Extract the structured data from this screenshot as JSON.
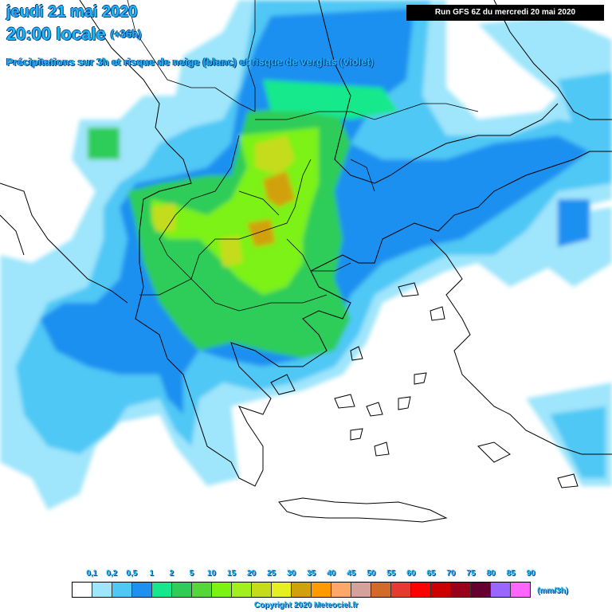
{
  "header": {
    "date_line": "jeudi 21 mai 2020",
    "time_line": "20:00 locale",
    "lead_time": "(+36h)",
    "subtitle": "Précipitations sur 3h et risque de neige (blanc) et risque de verglas (violet)",
    "run_info": "Run GFS 6Z du mercredi 20 mai 2020"
  },
  "legend": {
    "unit": "(mm/3h)",
    "values": [
      "0,1",
      "0,2",
      "0,5",
      "1",
      "2",
      "5",
      "10",
      "15",
      "20",
      "25",
      "30",
      "35",
      "40",
      "45",
      "50",
      "55",
      "60",
      "65",
      "70",
      "75",
      "80",
      "85",
      "90"
    ],
    "colors": [
      "#ffffff",
      "#9fe5fb",
      "#4fc8f5",
      "#1e90f0",
      "#15e88c",
      "#2fcc58",
      "#55d63a",
      "#7cf213",
      "#a2ef1e",
      "#c5dc1b",
      "#e6f020",
      "#d1a10d",
      "#ff9a00",
      "#ffa86a",
      "#d4a19c",
      "#d26a2a",
      "#e63a30",
      "#ff0000",
      "#cc0000",
      "#99001a",
      "#660033",
      "#9966ff",
      "#ff66ff"
    ]
  },
  "footer": {
    "copyright": "Copyright 2020 Meteociel.fr"
  }
}
